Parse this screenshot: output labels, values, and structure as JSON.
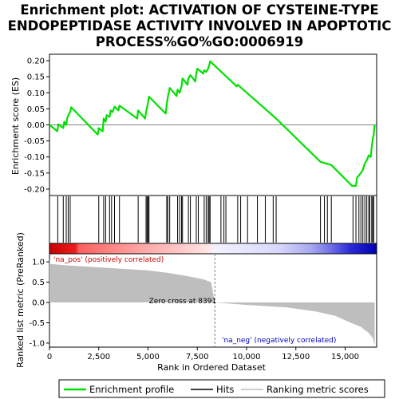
{
  "chart_data": {
    "type": "line",
    "title_lines": [
      "Enrichment plot: ACTIVATION OF CYSTEINE-TYPE",
      "ENDOPEPTIDASE ACTIVITY INVOLVED IN APOPTOTIC",
      "PROCESS%GO%GO:0006919"
    ],
    "xlabel": "Rank in Ordered Dataset",
    "es_ylabel": "Enrichment score (ES)",
    "metric_ylabel": "Ranked list metric (PreRanked)",
    "xlim": [
      0,
      16600
    ],
    "es_ylim": [
      -0.22,
      0.22
    ],
    "metric_ylim": [
      -1.1,
      1.2
    ],
    "x_ticks": [
      0,
      2500,
      5000,
      7500,
      10000,
      12500,
      15000
    ],
    "x_tick_labels": [
      "0",
      "2,500",
      "5,000",
      "7,500",
      "10,000",
      "12,500",
      "15,000"
    ],
    "es_ticks": [
      0.2,
      0.15,
      0.1,
      0.05,
      0.0,
      -0.05,
      -0.1,
      -0.15,
      -0.2
    ],
    "es_tick_labels": [
      "0.20",
      "0.15",
      "0.10",
      "0.05",
      "0.00",
      "-0.05",
      "-0.10",
      "-0.15",
      "-0.20"
    ],
    "metric_ticks": [
      1.0,
      0.5,
      0.0,
      -0.5,
      -1.0
    ],
    "metric_tick_labels": [
      "1.0",
      "0.5",
      "0.0",
      "-0.5",
      "-1.0"
    ],
    "hits": [
      420,
      700,
      850,
      950,
      1050,
      2500,
      2750,
      2850,
      3050,
      3150,
      3300,
      3550,
      4500,
      4900,
      4950,
      5000,
      5050,
      5950,
      6000,
      6100,
      6500,
      6600,
      6700,
      6750,
      7050,
      7150,
      7450,
      7550,
      7850,
      7950,
      8050,
      8100,
      8150,
      8700,
      8850,
      8950,
      9550,
      9700,
      10050,
      10550,
      10950,
      11350,
      11500,
      13750,
      13950,
      14100,
      14300,
      15400,
      15550,
      15700,
      15800,
      15900,
      16000,
      16100,
      16200,
      16250,
      16350,
      16400,
      16450
    ],
    "es_curve": [
      [
        0,
        0.0
      ],
      [
        400,
        -0.02
      ],
      [
        450,
        0.002
      ],
      [
        700,
        -0.01
      ],
      [
        750,
        0.01
      ],
      [
        850,
        0.0
      ],
      [
        900,
        0.02
      ],
      [
        950,
        0.03
      ],
      [
        1050,
        0.04
      ],
      [
        1100,
        0.055
      ],
      [
        2450,
        -0.03
      ],
      [
        2500,
        -0.01
      ],
      [
        2700,
        -0.02
      ],
      [
        2750,
        0.02
      ],
      [
        2850,
        0.01
      ],
      [
        2900,
        0.03
      ],
      [
        3050,
        0.025
      ],
      [
        3100,
        0.045
      ],
      [
        3200,
        0.04
      ],
      [
        3300,
        0.057
      ],
      [
        3500,
        0.045
      ],
      [
        3550,
        0.06
      ],
      [
        4450,
        0.02
      ],
      [
        4500,
        0.045
      ],
      [
        4850,
        0.02
      ],
      [
        4900,
        0.04
      ],
      [
        4950,
        0.055
      ],
      [
        5000,
        0.07
      ],
      [
        5050,
        0.088
      ],
      [
        5900,
        0.035
      ],
      [
        5950,
        0.065
      ],
      [
        6000,
        0.085
      ],
      [
        6050,
        0.1
      ],
      [
        6100,
        0.115
      ],
      [
        6450,
        0.09
      ],
      [
        6500,
        0.11
      ],
      [
        6600,
        0.1
      ],
      [
        6700,
        0.12
      ],
      [
        6750,
        0.145
      ],
      [
        7000,
        0.125
      ],
      [
        7050,
        0.145
      ],
      [
        7150,
        0.155
      ],
      [
        7400,
        0.135
      ],
      [
        7450,
        0.16
      ],
      [
        7500,
        0.175
      ],
      [
        7800,
        0.16
      ],
      [
        7850,
        0.17
      ],
      [
        7950,
        0.165
      ],
      [
        8050,
        0.175
      ],
      [
        8100,
        0.185
      ],
      [
        8150,
        0.198
      ],
      [
        9500,
        0.12
      ],
      [
        9550,
        0.125
      ],
      [
        11500,
        0.02
      ],
      [
        13750,
        -0.115
      ],
      [
        14300,
        -0.125
      ],
      [
        15350,
        -0.19
      ],
      [
        15550,
        -0.19
      ],
      [
        15600,
        -0.165
      ],
      [
        15800,
        -0.15
      ],
      [
        15900,
        -0.14
      ],
      [
        16000,
        -0.12
      ],
      [
        16100,
        -0.11
      ],
      [
        16200,
        -0.095
      ],
      [
        16300,
        -0.1
      ],
      [
        16350,
        -0.07
      ],
      [
        16400,
        -0.045
      ],
      [
        16450,
        -0.03
      ],
      [
        16500,
        0.0
      ]
    ],
    "metric_curve": [
      [
        0,
        1.1
      ],
      [
        20,
        0.95
      ],
      [
        1000,
        0.91
      ],
      [
        3000,
        0.85
      ],
      [
        5000,
        0.79
      ],
      [
        6000,
        0.73
      ],
      [
        7000,
        0.65
      ],
      [
        7800,
        0.57
      ],
      [
        8200,
        0.5
      ],
      [
        8391,
        0.0
      ],
      [
        10000,
        -0.06
      ],
      [
        12000,
        -0.12
      ],
      [
        13500,
        -0.22
      ],
      [
        14500,
        -0.33
      ],
      [
        15200,
        -0.48
      ],
      [
        15800,
        -0.6
      ],
      [
        16200,
        -0.75
      ],
      [
        16400,
        -0.87
      ],
      [
        16500,
        -1.05
      ]
    ],
    "zero_cross_rank": 8391,
    "zero_cross_label": "Zero cross at 8391",
    "pos_label": "'na_pos' (positively correlated)",
    "neg_label": "'na_neg' (negatively correlated)",
    "legend": [
      "Enrichment profile",
      "Hits",
      "Ranking metric scores"
    ],
    "colors": {
      "es_line": "#00e000",
      "hits": "#000000",
      "metric_fill": "#bebebe",
      "zero_line": "#808080",
      "pos_text": "#cc0000",
      "neg_text": "#0000cc",
      "frame": "#000000"
    }
  }
}
